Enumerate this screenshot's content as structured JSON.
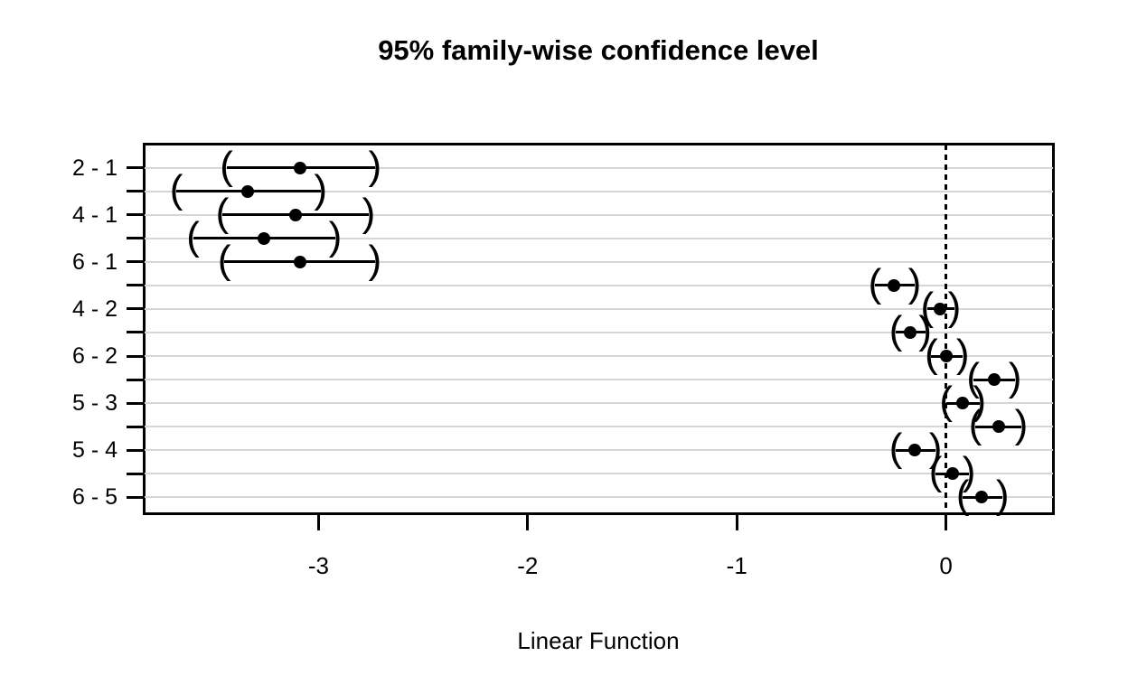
{
  "chart_data": {
    "type": "scatter",
    "subtype": "confidence-interval-plot",
    "title": "95% family-wise confidence level",
    "xlabel": "Linear Function",
    "ylabel": "",
    "xlim": [
      -3.84,
      0.52
    ],
    "x_ticks": [
      -3,
      -2,
      -1,
      0
    ],
    "x_tick_labels": [
      "-3",
      "-2",
      "-1",
      "0"
    ],
    "reference_line_x": 0,
    "grid": true,
    "legend_position": "none",
    "colors": {
      "line": "#000000",
      "grid": "#d6d6d6",
      "background": "#ffffff"
    },
    "rows": [
      {
        "label": "2 - 1",
        "estimate": -3.09,
        "lower": -3.44,
        "upper": -2.73
      },
      {
        "label": "",
        "estimate": -3.34,
        "lower": -3.68,
        "upper": -2.99
      },
      {
        "label": "4 - 1",
        "estimate": -3.11,
        "lower": -3.46,
        "upper": -2.76
      },
      {
        "label": "",
        "estimate": -3.26,
        "lower": -3.6,
        "upper": -2.92
      },
      {
        "label": "6 - 1",
        "estimate": -3.09,
        "lower": -3.45,
        "upper": -2.73
      },
      {
        "label": "",
        "estimate": -0.25,
        "lower": -0.34,
        "upper": -0.15
      },
      {
        "label": "4 - 2",
        "estimate": -0.03,
        "lower": -0.09,
        "upper": 0.04
      },
      {
        "label": "",
        "estimate": -0.17,
        "lower": -0.24,
        "upper": -0.1
      },
      {
        "label": "6 - 2",
        "estimate": 0.0,
        "lower": -0.07,
        "upper": 0.08
      },
      {
        "label": "",
        "estimate": 0.23,
        "lower": 0.13,
        "upper": 0.33
      },
      {
        "label": "5 - 3",
        "estimate": 0.08,
        "lower": 0.0,
        "upper": 0.16
      },
      {
        "label": "",
        "estimate": 0.25,
        "lower": 0.14,
        "upper": 0.36
      },
      {
        "label": "5 - 4",
        "estimate": -0.15,
        "lower": -0.24,
        "upper": -0.05
      },
      {
        "label": "",
        "estimate": 0.03,
        "lower": -0.05,
        "upper": 0.11
      },
      {
        "label": "6 - 5",
        "estimate": 0.17,
        "lower": 0.08,
        "upper": 0.27
      }
    ],
    "paren_open": "(",
    "paren_close": ")"
  }
}
